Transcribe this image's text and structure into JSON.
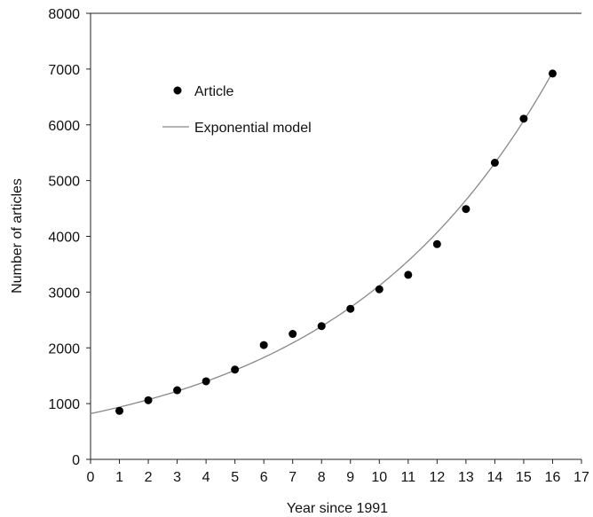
{
  "chart_data": {
    "type": "scatter",
    "title": "",
    "xlabel": "Year since 1991",
    "ylabel": "Number of articles",
    "xlim": [
      0,
      17
    ],
    "ylim": [
      0,
      8000
    ],
    "x_ticks": [
      0,
      1,
      2,
      3,
      4,
      5,
      6,
      7,
      8,
      9,
      10,
      11,
      12,
      13,
      14,
      15,
      16,
      17
    ],
    "y_ticks": [
      0,
      1000,
      2000,
      3000,
      4000,
      5000,
      6000,
      7000,
      8000
    ],
    "grid": false,
    "legend_position": "top-left",
    "series": [
      {
        "name": "Article",
        "kind": "scatter",
        "color": "#000000",
        "x": [
          1,
          2,
          3,
          4,
          5,
          6,
          7,
          8,
          9,
          10,
          11,
          12,
          13,
          14,
          15,
          16
        ],
        "y": [
          870,
          1060,
          1240,
          1400,
          1610,
          2050,
          2250,
          2390,
          2700,
          3050,
          3310,
          3860,
          4490,
          5320,
          6110,
          6920
        ]
      },
      {
        "name": "Exponential model",
        "kind": "line",
        "color": "#888888",
        "model": "exponential",
        "a": 820,
        "b": 0.1335
      }
    ]
  }
}
